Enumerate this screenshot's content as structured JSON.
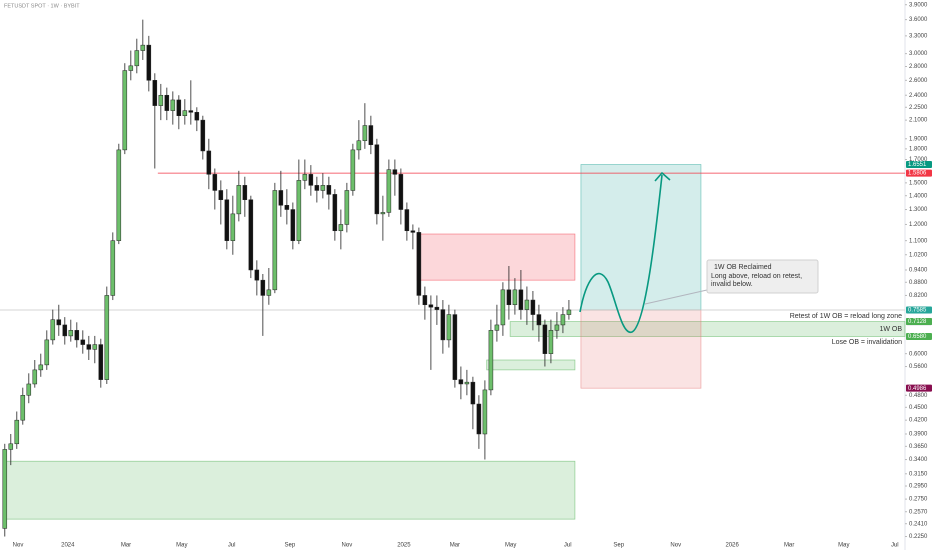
{
  "chart_data": {
    "type": "candlestick",
    "title": "FETUSDT SPOT · 1W · BYBIT",
    "log_scale": true,
    "ylim": [
      0.215,
      4.0
    ],
    "xlim": [
      -0.8,
      150
    ],
    "up_color": "#6dbf6b",
    "down_color": "#111111",
    "open": [
      0.235,
      0.359,
      0.37,
      0.42,
      0.48,
      0.51,
      0.55,
      0.565,
      0.646,
      0.72,
      0.7,
      0.66,
      0.68,
      0.646,
      0.63,
      0.614,
      0.63,
      0.522,
      0.82,
      1.1,
      1.79,
      2.74,
      2.81,
      3.05,
      3.14,
      2.6,
      2.27,
      2.4,
      2.21,
      2.34,
      2.15,
      2.21,
      2.19,
      2.1,
      1.78,
      1.57,
      1.44,
      1.37,
      1.1,
      1.27,
      1.48,
      1.37,
      0.94,
      0.89,
      0.82,
      0.845,
      1.44,
      1.33,
      1.3,
      1.1,
      1.52,
      1.57,
      1.48,
      1.44,
      1.48,
      1.41,
      1.16,
      1.2,
      1.44,
      1.79,
      1.88,
      2.04,
      1.84,
      1.27,
      1.28,
      1.61,
      1.57,
      1.3,
      1.16,
      1.15,
      0.82,
      0.78,
      0.77,
      0.76,
      0.646,
      0.74,
      0.522,
      0.51,
      0.515,
      0.458,
      0.39,
      0.494,
      0.68,
      0.7,
      0.845,
      0.78,
      0.845,
      0.76,
      0.8,
      0.74,
      0.7,
      0.6,
      0.68,
      0.7,
      0.74
    ],
    "high": [
      0.37,
      0.39,
      0.44,
      0.5,
      0.54,
      0.58,
      0.6,
      0.68,
      0.76,
      0.78,
      0.73,
      0.72,
      0.71,
      0.68,
      0.66,
      0.66,
      0.65,
      0.86,
      1.15,
      1.85,
      2.85,
      3.05,
      3.25,
      3.6,
      3.3,
      2.7,
      2.55,
      2.5,
      2.45,
      2.4,
      2.35,
      2.6,
      2.25,
      2.15,
      1.9,
      1.62,
      1.52,
      1.45,
      1.4,
      1.6,
      1.55,
      1.4,
      0.99,
      0.92,
      0.95,
      1.5,
      1.6,
      1.45,
      1.35,
      1.7,
      1.7,
      1.65,
      1.55,
      1.58,
      1.55,
      1.45,
      1.3,
      1.5,
      1.85,
      2.1,
      2.3,
      2.15,
      1.9,
      1.4,
      1.7,
      1.7,
      1.62,
      1.35,
      1.2,
      1.18,
      0.86,
      0.82,
      0.82,
      0.8,
      0.78,
      0.76,
      0.56,
      0.55,
      0.53,
      0.48,
      0.52,
      0.72,
      0.78,
      0.88,
      0.96,
      0.9,
      0.94,
      0.86,
      0.84,
      0.78,
      0.72,
      0.72,
      0.75,
      0.77,
      0.8
    ],
    "low": [
      0.225,
      0.33,
      0.36,
      0.41,
      0.46,
      0.5,
      0.53,
      0.55,
      0.63,
      0.66,
      0.63,
      0.64,
      0.62,
      0.6,
      0.58,
      0.57,
      0.5,
      0.51,
      0.8,
      1.08,
      1.75,
      2.6,
      2.7,
      2.9,
      2.45,
      1.62,
      2.1,
      2.1,
      2.05,
      2.0,
      2.05,
      2.05,
      1.98,
      1.7,
      1.45,
      1.3,
      1.2,
      1.05,
      1.02,
      1.22,
      1.25,
      0.9,
      0.82,
      0.66,
      0.78,
      0.83,
      1.25,
      1.2,
      1.05,
      1.08,
      1.45,
      1.4,
      1.35,
      1.38,
      1.3,
      1.1,
      1.05,
      1.15,
      1.4,
      1.7,
      1.8,
      1.75,
      1.2,
      1.1,
      1.25,
      1.4,
      1.2,
      1.1,
      1.05,
      0.78,
      0.72,
      0.55,
      0.7,
      0.6,
      0.62,
      0.5,
      0.47,
      0.48,
      0.4,
      0.36,
      0.34,
      0.48,
      0.64,
      0.66,
      0.72,
      0.74,
      0.72,
      0.7,
      0.68,
      0.64,
      0.56,
      0.57,
      0.65,
      0.67,
      0.72
    ],
    "close": [
      0.359,
      0.37,
      0.42,
      0.48,
      0.51,
      0.55,
      0.565,
      0.646,
      0.72,
      0.7,
      0.66,
      0.68,
      0.646,
      0.63,
      0.614,
      0.63,
      0.522,
      0.82,
      1.1,
      1.79,
      2.74,
      2.81,
      3.05,
      3.14,
      2.6,
      2.27,
      2.4,
      2.21,
      2.34,
      2.15,
      2.21,
      2.19,
      2.1,
      1.78,
      1.57,
      1.44,
      1.37,
      1.1,
      1.27,
      1.48,
      1.37,
      0.94,
      0.89,
      0.82,
      0.845,
      1.44,
      1.33,
      1.3,
      1.1,
      1.52,
      1.57,
      1.48,
      1.44,
      1.48,
      1.41,
      1.16,
      1.2,
      1.44,
      1.79,
      1.88,
      2.04,
      1.84,
      1.27,
      1.28,
      1.61,
      1.57,
      1.3,
      1.16,
      1.15,
      0.82,
      0.78,
      0.77,
      0.76,
      0.646,
      0.74,
      0.522,
      0.51,
      0.515,
      0.458,
      0.39,
      0.494,
      0.68,
      0.7,
      0.845,
      0.78,
      0.845,
      0.76,
      0.8,
      0.74,
      0.7,
      0.6,
      0.68,
      0.7,
      0.74,
      0.7585
    ],
    "yticks": [
      {
        "value": 3.9,
        "label": "3.9000"
      },
      {
        "value": 3.6,
        "label": "3.6000"
      },
      {
        "value": 3.3,
        "label": "3.3000"
      },
      {
        "value": 3.0,
        "label": "3.0000"
      },
      {
        "value": 2.8,
        "label": "2.8000"
      },
      {
        "value": 2.6,
        "label": "2.6000"
      },
      {
        "value": 2.4,
        "label": "2.4000"
      },
      {
        "value": 2.25,
        "label": "2.2500"
      },
      {
        "value": 2.1,
        "label": "2.1000"
      },
      {
        "value": 1.9,
        "label": "1.9000"
      },
      {
        "value": 1.8,
        "label": "1.8000"
      },
      {
        "value": 1.7,
        "label": "1.7000"
      },
      {
        "value": 1.5,
        "label": "1.5000"
      },
      {
        "value": 1.4,
        "label": "1.4000"
      },
      {
        "value": 1.3,
        "label": "1.3000"
      },
      {
        "value": 1.2,
        "label": "1.2000"
      },
      {
        "value": 1.1,
        "label": "1.1000"
      },
      {
        "value": 1.02,
        "label": "1.0200"
      },
      {
        "value": 0.94,
        "label": "0.9400"
      },
      {
        "value": 0.88,
        "label": "0.8800"
      },
      {
        "value": 0.82,
        "label": "0.8200"
      },
      {
        "value": 0.6,
        "label": "0.6000"
      },
      {
        "value": 0.56,
        "label": "0.5600"
      },
      {
        "value": 0.48,
        "label": "0.4800"
      },
      {
        "value": 0.45,
        "label": "0.4500"
      },
      {
        "value": 0.42,
        "label": "0.4200"
      },
      {
        "value": 0.39,
        "label": "0.3900"
      },
      {
        "value": 0.365,
        "label": "0.3650"
      },
      {
        "value": 0.34,
        "label": "0.3400"
      },
      {
        "value": 0.315,
        "label": "0.3150"
      },
      {
        "value": 0.295,
        "label": "0.2950"
      },
      {
        "value": 0.275,
        "label": "0.2750"
      },
      {
        "value": 0.257,
        "label": "0.2570"
      },
      {
        "value": 0.241,
        "label": "0.2410"
      },
      {
        "value": 0.225,
        "label": "0.2250"
      }
    ],
    "xticks": [
      {
        "value": 2.2,
        "label": "Nov"
      },
      {
        "value": 10.5,
        "label": "2024"
      },
      {
        "value": 20.2,
        "label": "Mar"
      },
      {
        "value": 29.5,
        "label": "May"
      },
      {
        "value": 37.8,
        "label": "Jul"
      },
      {
        "value": 47.5,
        "label": "Sep"
      },
      {
        "value": 57,
        "label": "Nov"
      },
      {
        "value": 66.5,
        "label": "2025"
      },
      {
        "value": 75,
        "label": "Mar"
      },
      {
        "value": 84.3,
        "label": "May"
      },
      {
        "value": 93.8,
        "label": "Jul"
      },
      {
        "value": 102.3,
        "label": "Sep"
      },
      {
        "value": 111.8,
        "label": "Nov"
      },
      {
        "value": 121.2,
        "label": "2026"
      },
      {
        "value": 130.7,
        "label": "Mar"
      },
      {
        "value": 139.8,
        "label": "May"
      },
      {
        "value": 148.3,
        "label": "Jul"
      }
    ],
    "zones": [
      {
        "x": [
          68.7,
          95
        ],
        "y": [
          0.89,
          1.14
        ],
        "color": "#f23645"
      },
      {
        "x": [
          84.2,
          150
        ],
        "y": [
          0.658,
          0.7128
        ],
        "color": "#4caf50"
      },
      {
        "x": [
          80.3,
          95
        ],
        "y": [
          0.55,
          0.58
        ],
        "color": "#4caf50"
      },
      {
        "x": [
          0,
          95
        ],
        "y": [
          0.247,
          0.337
        ],
        "color": "#4caf50"
      },
      {
        "x": [
          96,
          116
        ],
        "y": [
          0.7585,
          1.6551
        ],
        "color": "#26a69a"
      },
      {
        "x": [
          96,
          116
        ],
        "y": [
          0.4986,
          0.7585
        ],
        "color": "#e57373"
      }
    ],
    "levels": [
      {
        "x": [
          25.5,
          150
        ],
        "value": 1.5806,
        "color": "#f23645"
      },
      {
        "x": [
          -0.8,
          150
        ],
        "value": 0.7585,
        "color": "#c8c8c8"
      }
    ],
    "price_labels": [
      {
        "value": 1.6551,
        "color": "#089981"
      },
      {
        "value": 1.5806,
        "color": "#f23645"
      },
      {
        "value": 0.7585,
        "color": "#26a69a"
      },
      {
        "value": 0.7126,
        "color": "#787b86"
      },
      {
        "value": 0.7128,
        "color": "#4caf50"
      },
      {
        "value": 0.658,
        "label": "0.6580",
        "color": "#4caf50"
      },
      {
        "value": 0.4986,
        "color": "#880e4f"
      }
    ],
    "annotations": {
      "box_title": "1W OB Reclaimed",
      "box_text": "Long above, reload on retest, invalid below.",
      "retest": "Retest of 1W OB = reload long zone",
      "ob": "1W OB",
      "invalidation": "Lose OB = invalidation"
    }
  }
}
